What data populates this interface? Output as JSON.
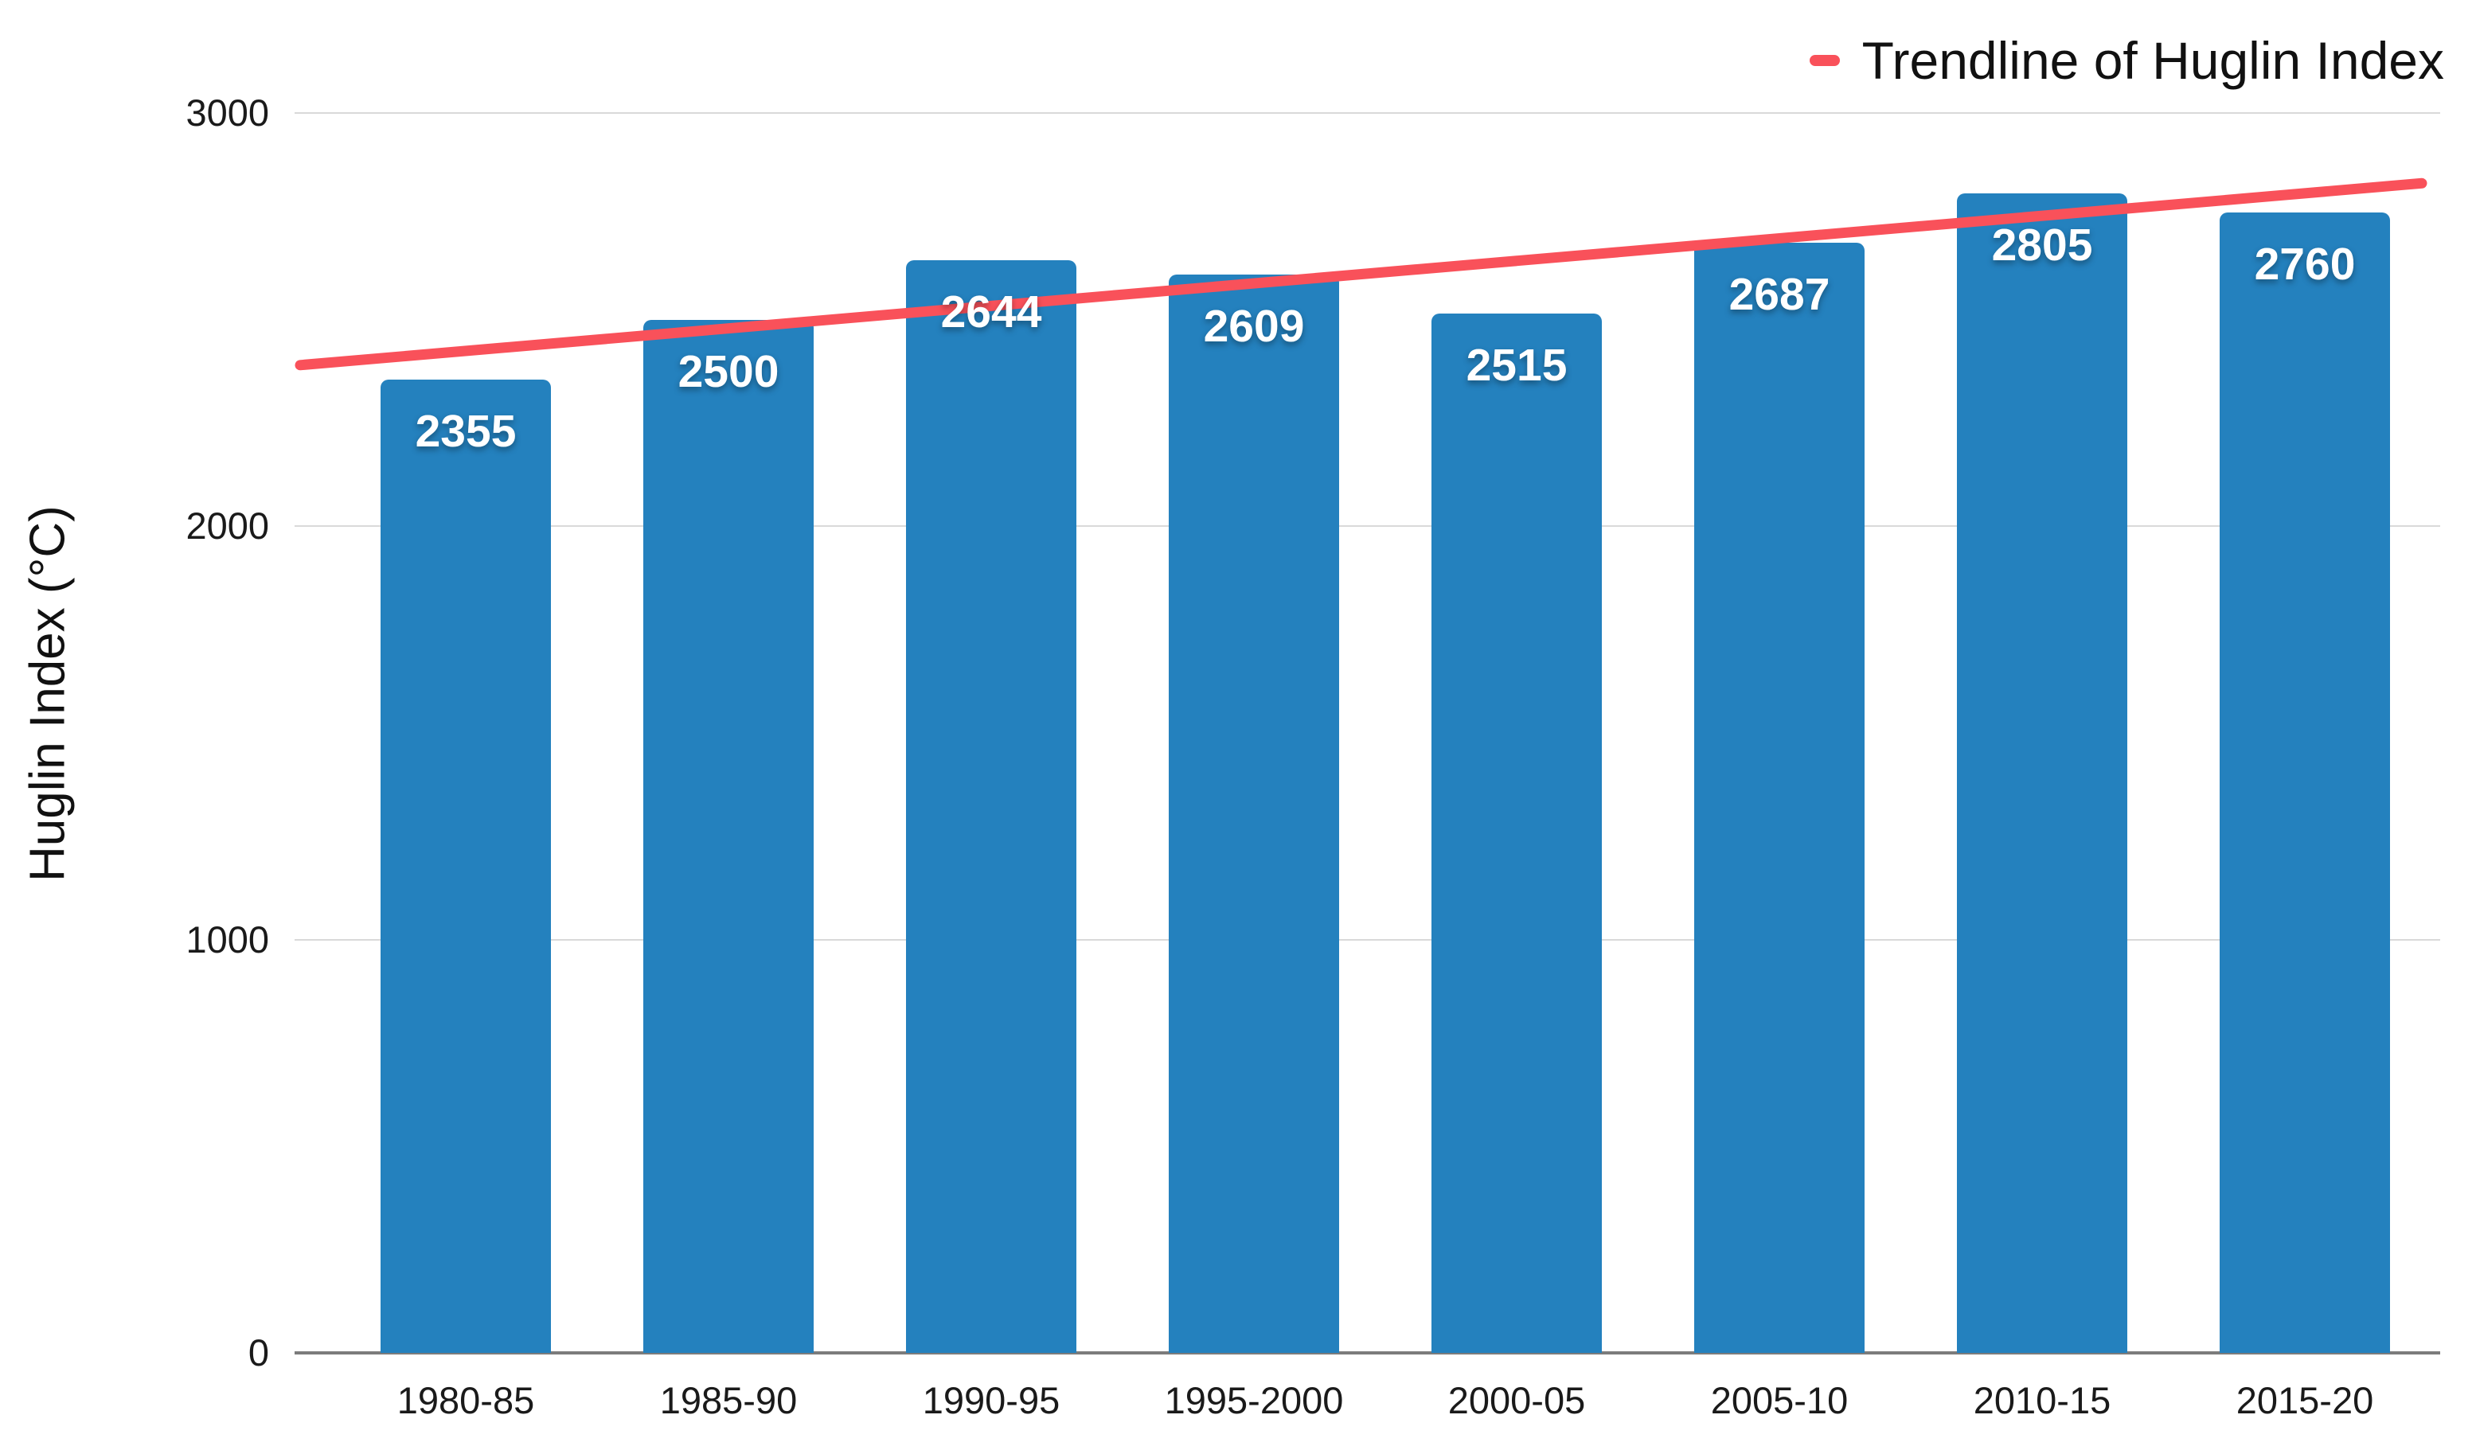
{
  "legend": {
    "label": "Trendline of Huglin Index"
  },
  "chart_data": {
    "type": "bar",
    "title": "",
    "xlabel": "",
    "ylabel": "Huglin Index (°C)",
    "categories": [
      "1980-85",
      "1985-90",
      "1990-95",
      "1995-2000",
      "2000-05",
      "2005-10",
      "2010-15",
      "2015-20"
    ],
    "values": [
      2355,
      2500,
      2644,
      2609,
      2515,
      2687,
      2805,
      2760
    ],
    "ylim": [
      0,
      3000
    ],
    "yticks": [
      0,
      1000,
      2000,
      3000
    ],
    "grid": true,
    "legend_position": "top-right",
    "bar_color": "#2481be",
    "trendline": {
      "name": "Trendline of Huglin Index",
      "color": "#f9515a",
      "start_value": 2390,
      "end_value": 2830
    }
  }
}
